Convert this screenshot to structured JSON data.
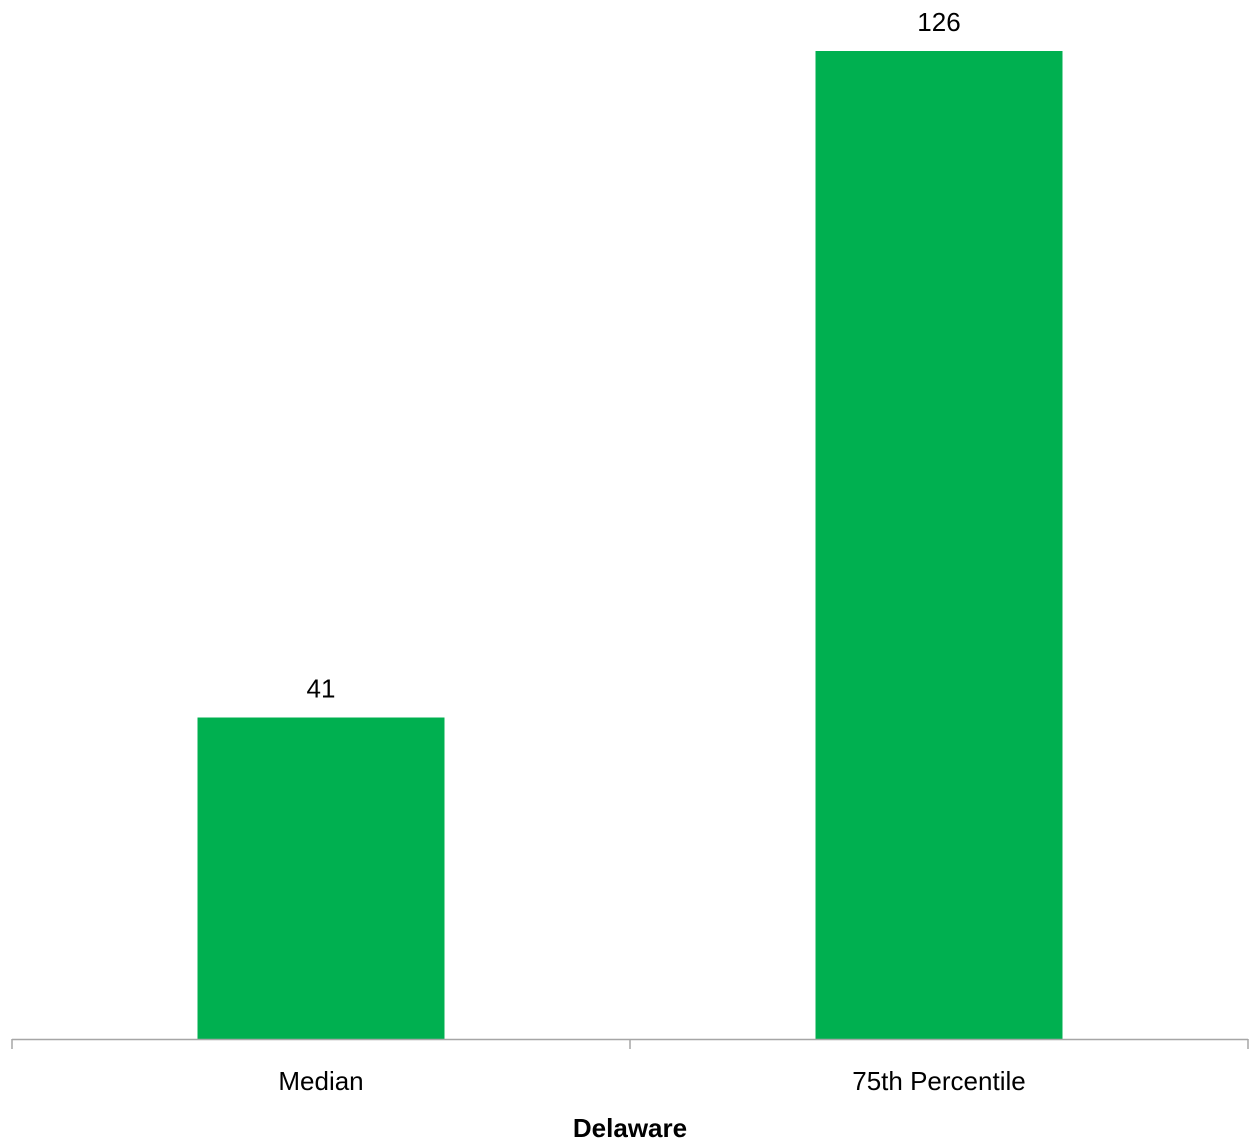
{
  "chart_data": {
    "type": "bar",
    "categories": [
      "Median",
      "75th Percentile"
    ],
    "values": [
      41,
      126
    ],
    "data_labels": [
      "41",
      "126"
    ],
    "title": "",
    "xlabel": "Delaware",
    "ylabel": "",
    "ylim": [
      0,
      126
    ],
    "grid": false,
    "legend": "none",
    "bar_color": "#00B050",
    "axis_color": "#A6A6A6"
  }
}
